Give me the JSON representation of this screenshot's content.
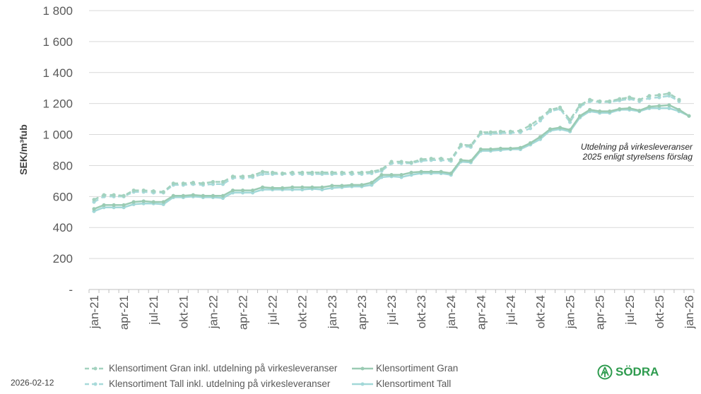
{
  "chart_data": {
    "type": "line",
    "ylabel": "SEK/m³fub",
    "ylim": [
      0,
      1800
    ],
    "yticks": [
      0,
      200,
      400,
      600,
      800,
      1000,
      1200,
      1400,
      1600,
      1800
    ],
    "ytick_labels": [
      "-",
      "200",
      "400",
      "600",
      "800",
      "1 000",
      "1 200",
      "1 400",
      "1 600",
      "1 800"
    ],
    "grid": "horizontal",
    "legend_position": "bottom",
    "x": [
      "jan-21",
      "feb-21",
      "mar-21",
      "apr-21",
      "maj-21",
      "jun-21",
      "jul-21",
      "aug-21",
      "sep-21",
      "okt-21",
      "nov-21",
      "dec-21",
      "jan-22",
      "feb-22",
      "mar-22",
      "apr-22",
      "maj-22",
      "jun-22",
      "jul-22",
      "aug-22",
      "sep-22",
      "okt-22",
      "nov-22",
      "dec-22",
      "jan-23",
      "feb-23",
      "mar-23",
      "apr-23",
      "maj-23",
      "jun-23",
      "jul-23",
      "aug-23",
      "sep-23",
      "okt-23",
      "nov-23",
      "dec-23",
      "jan-24",
      "feb-24",
      "mar-24",
      "apr-24",
      "maj-24",
      "jun-24",
      "jul-24",
      "aug-24",
      "sep-24",
      "okt-24",
      "nov-24",
      "dec-24",
      "jan-25",
      "feb-25",
      "mar-25",
      "apr-25",
      "maj-25",
      "jun-25",
      "jul-25",
      "aug-25",
      "sep-25",
      "okt-25",
      "nov-25",
      "dec-25",
      "jan-26"
    ],
    "xtick_labels": [
      "jan-21",
      "apr-21",
      "jul-21",
      "okt-21",
      "jan-22",
      "apr-22",
      "jul-22",
      "okt-22",
      "jan-23",
      "apr-23",
      "jul-23",
      "okt-23",
      "jan-24",
      "apr-24",
      "jul-24",
      "okt-24",
      "jan-25",
      "apr-25",
      "jul-25",
      "okt-25",
      "jan-26"
    ],
    "series": [
      {
        "name": "Klensortiment Gran inkl. utdelning på virkesleveranser",
        "color": "#a3d2bf",
        "dash": true,
        "values": [
          580,
          610,
          610,
          605,
          640,
          640,
          635,
          630,
          685,
          685,
          690,
          685,
          695,
          695,
          730,
          730,
          735,
          760,
          755,
          750,
          755,
          755,
          755,
          755,
          755,
          755,
          755,
          755,
          760,
          775,
          825,
          825,
          820,
          840,
          845,
          845,
          840,
          935,
          930,
          1015,
          1015,
          1020,
          1020,
          1025,
          1060,
          1105,
          1160,
          1175,
          1095,
          1190,
          1225,
          1215,
          1215,
          1230,
          1240,
          1225,
          1250,
          1255,
          1265,
          1225,
          null
        ]
      },
      {
        "name": "Klensortiment Gran",
        "color": "#9acbb3",
        "dash": false,
        "values": [
          520,
          545,
          545,
          545,
          565,
          570,
          565,
          565,
          605,
          605,
          610,
          605,
          605,
          605,
          640,
          640,
          640,
          660,
          655,
          655,
          660,
          660,
          660,
          660,
          670,
          670,
          675,
          675,
          690,
          740,
          740,
          740,
          755,
          760,
          760,
          760,
          750,
          835,
          830,
          905,
          905,
          910,
          910,
          915,
          945,
          985,
          1035,
          1045,
          1030,
          1120,
          1160,
          1150,
          1150,
          1165,
          1170,
          1155,
          1180,
          1185,
          1190,
          1160,
          1120
        ]
      },
      {
        "name": "Klensortiment Tall inkl. utdelning på virkesleveranser",
        "color": "#a8dada",
        "dash": true,
        "values": [
          565,
          600,
          600,
          600,
          630,
          630,
          625,
          625,
          675,
          675,
          680,
          675,
          680,
          680,
          720,
          720,
          725,
          745,
          745,
          745,
          745,
          745,
          745,
          745,
          745,
          745,
          745,
          745,
          750,
          765,
          815,
          815,
          815,
          830,
          835,
          835,
          830,
          925,
          920,
          1005,
          1005,
          1010,
          1010,
          1015,
          1040,
          1090,
          1150,
          1165,
          1080,
          1180,
          1215,
          1210,
          1210,
          1220,
          1230,
          1215,
          1235,
          1240,
          1250,
          1215,
          null
        ]
      },
      {
        "name": "Klensortiment Tall",
        "color": "#a2d8d8",
        "dash": false,
        "values": [
          505,
          530,
          530,
          530,
          550,
          555,
          555,
          550,
          595,
          595,
          600,
          595,
          595,
          590,
          625,
          625,
          625,
          645,
          645,
          645,
          645,
          645,
          650,
          645,
          655,
          660,
          665,
          665,
          675,
          725,
          730,
          725,
          740,
          750,
          750,
          750,
          740,
          825,
          820,
          895,
          895,
          900,
          905,
          905,
          935,
          970,
          1025,
          1035,
          1020,
          1110,
          1150,
          1140,
          1140,
          1160,
          1160,
          1150,
          1170,
          1170,
          1170,
          1150,
          1120
        ]
      }
    ],
    "annotation": [
      "Utdelning på virkesleveranser",
      "2025 enligt styrelsens förslag"
    ]
  },
  "footer": {
    "date": "2026-02-12",
    "logo_text": "SÖDRA",
    "logo_color": "#2e9b4e"
  }
}
